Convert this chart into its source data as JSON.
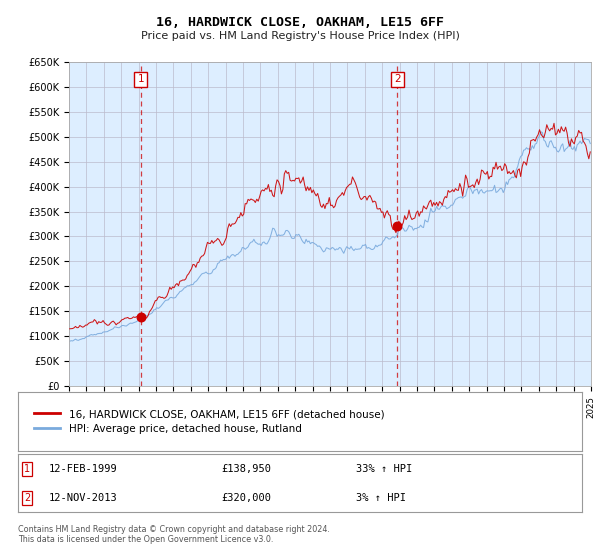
{
  "title": "16, HARDWICK CLOSE, OAKHAM, LE15 6FF",
  "subtitle": "Price paid vs. HM Land Registry's House Price Index (HPI)",
  "legend_line1": "16, HARDWICK CLOSE, OAKHAM, LE15 6FF (detached house)",
  "legend_line2": "HPI: Average price, detached house, Rutland",
  "annotation1_date": "12-FEB-1999",
  "annotation1_price": 138950,
  "annotation1_hpi": "33% ↑ HPI",
  "annotation2_date": "12-NOV-2013",
  "annotation2_price": 320000,
  "annotation2_hpi": "3% ↑ HPI",
  "footer": "Contains HM Land Registry data © Crown copyright and database right 2024.\nThis data is licensed under the Open Government Licence v3.0.",
  "line_color_red": "#cc0000",
  "line_color_blue": "#7aaadd",
  "dot_color": "#cc0000",
  "bg_color": "#ddeeff",
  "grid_color": "#bbbbcc",
  "ylim_min": 0,
  "ylim_max": 650000,
  "xmin": 1995,
  "xmax": 2025,
  "sale1_year": 1999.12,
  "sale1_value": 138950,
  "sale2_year": 2013.87,
  "sale2_value": 320000
}
